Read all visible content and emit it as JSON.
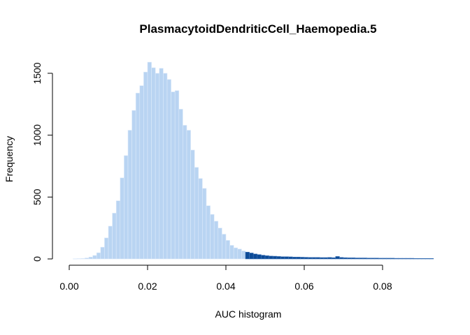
{
  "chart_data": {
    "type": "bar",
    "title": "PlasmacytoidDendriticCell_Haemopedia.5",
    "xlabel": "AUC histogram",
    "ylabel": "Frequency",
    "xlim": [
      -0.001,
      0.093
    ],
    "ylim": [
      0,
      1650
    ],
    "bin_width": 0.001,
    "bin_start": 0.001,
    "threshold": 0.0443,
    "colors": {
      "below_threshold": "#b9d4f2",
      "above_threshold": "#0c4a96",
      "bar_edge_below": "#ddeafa",
      "bar_edge_above": "#3f74b8"
    },
    "x_ticks": [
      0.0,
      0.02,
      0.04,
      0.06,
      0.08
    ],
    "x_tick_labels": [
      "0.00",
      "0.02",
      "0.04",
      "0.06",
      "0.08"
    ],
    "y_ticks": [
      0,
      500,
      1000,
      1500
    ],
    "y_tick_labels": [
      "0",
      "500",
      "1000",
      "1500"
    ],
    "values": [
      2,
      3,
      4,
      8,
      15,
      28,
      50,
      95,
      170,
      265,
      370,
      470,
      655,
      835,
      1040,
      1200,
      1340,
      1400,
      1510,
      1590,
      1545,
      1500,
      1540,
      1500,
      1450,
      1350,
      1360,
      1210,
      1080,
      1040,
      880,
      740,
      650,
      570,
      430,
      360,
      305,
      250,
      200,
      150,
      110,
      90,
      80,
      65,
      55,
      48,
      40,
      35,
      30,
      26,
      23,
      22,
      20,
      18,
      18,
      17,
      15,
      15,
      14,
      13,
      12,
      12,
      12,
      11,
      11,
      12,
      10,
      20,
      12,
      10,
      9,
      9,
      8,
      8,
      8,
      7,
      7,
      7,
      6,
      6,
      6,
      6,
      5,
      5,
      5,
      5,
      5,
      4,
      4,
      4,
      4,
      4
    ]
  }
}
